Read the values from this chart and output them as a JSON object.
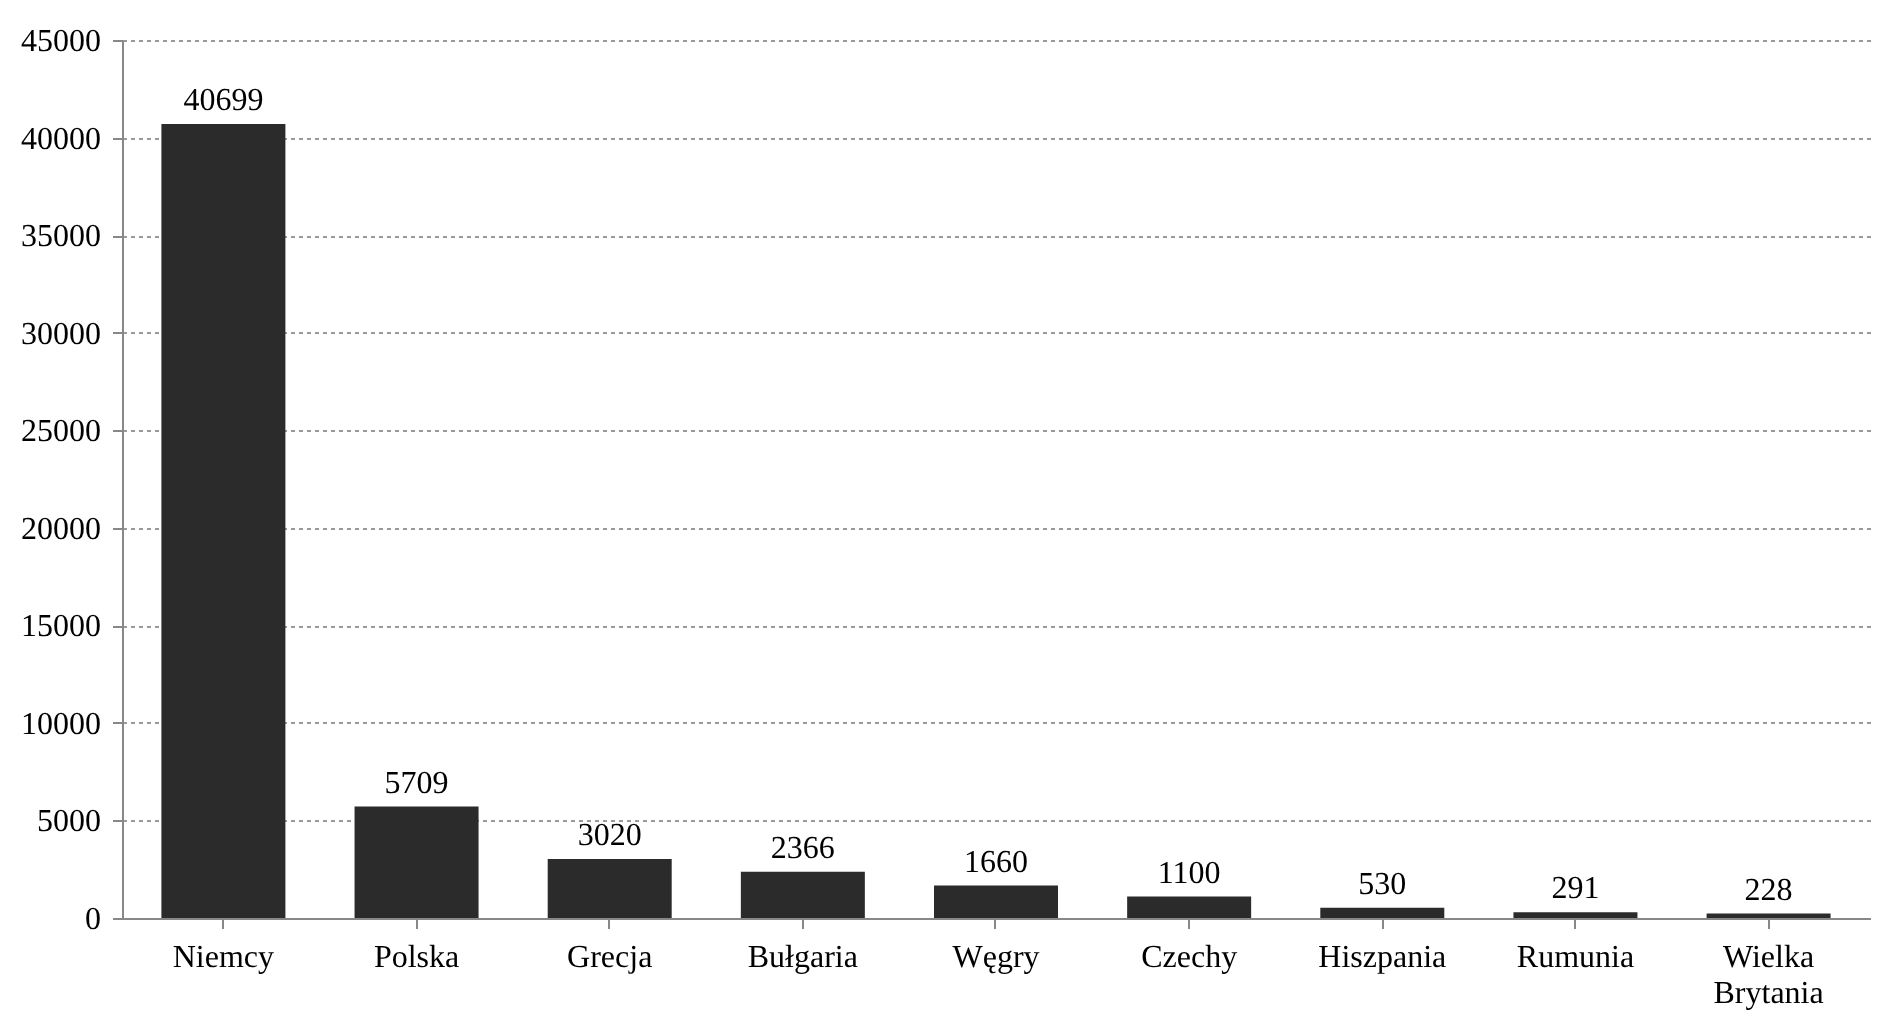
{
  "chart_data": {
    "type": "bar",
    "categories": [
      "Niemcy",
      "Polska",
      "Grecja",
      "Bułgaria",
      "Węgry",
      "Czechy",
      "Hiszpania",
      "Rumunia",
      "Wielka Brytania"
    ],
    "values": [
      40699,
      5709,
      3020,
      2366,
      1660,
      1100,
      530,
      291,
      228
    ],
    "color": "#2b2b2b",
    "ylim": [
      0,
      45000
    ],
    "yticks": [
      0,
      5000,
      10000,
      15000,
      20000,
      25000,
      30000,
      35000,
      40000,
      45000
    ],
    "grid": "y",
    "data_labels": true
  }
}
